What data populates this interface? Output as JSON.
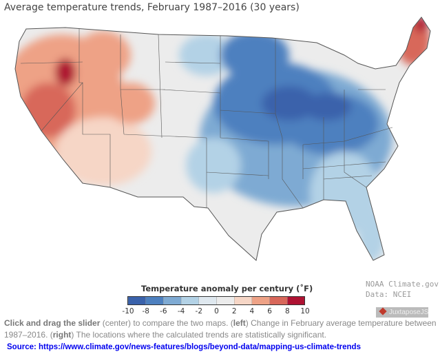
{
  "title": "Average temperature trends, February 1987–2016 (30 years)",
  "legend": {
    "title": "Temperature anomaly per century (˚F)",
    "ticks": [
      "-10",
      "-8",
      "-6",
      "-4",
      "-2",
      "0",
      "2",
      "4",
      "6",
      "8",
      "10"
    ],
    "colors": [
      "#3a62ab",
      "#4d80bf",
      "#7eaad3",
      "#b3d2e6",
      "#dfe8ef",
      "#ececec",
      "#f6d6c6",
      "#eea286",
      "#d8675a",
      "#ae1232"
    ]
  },
  "credits": {
    "line1": "NOAA Climate.gov",
    "line2": "Data: NCEI"
  },
  "juxtapose": "JuxtaposeJS",
  "caption": {
    "b1": "Click and drag the slider",
    "t1": " (center) to compare the two maps. (",
    "b2": "left",
    "t2": ") Change in February average temperature between 1987–2016. (",
    "b3": "right",
    "t3": ") The locations where the calculated trends are statistically significant."
  },
  "source": {
    "label": "Source: ",
    "url": "https://www.climate.gov/news-features/blogs/beyond-data/mapping-us-climate-trends"
  }
}
